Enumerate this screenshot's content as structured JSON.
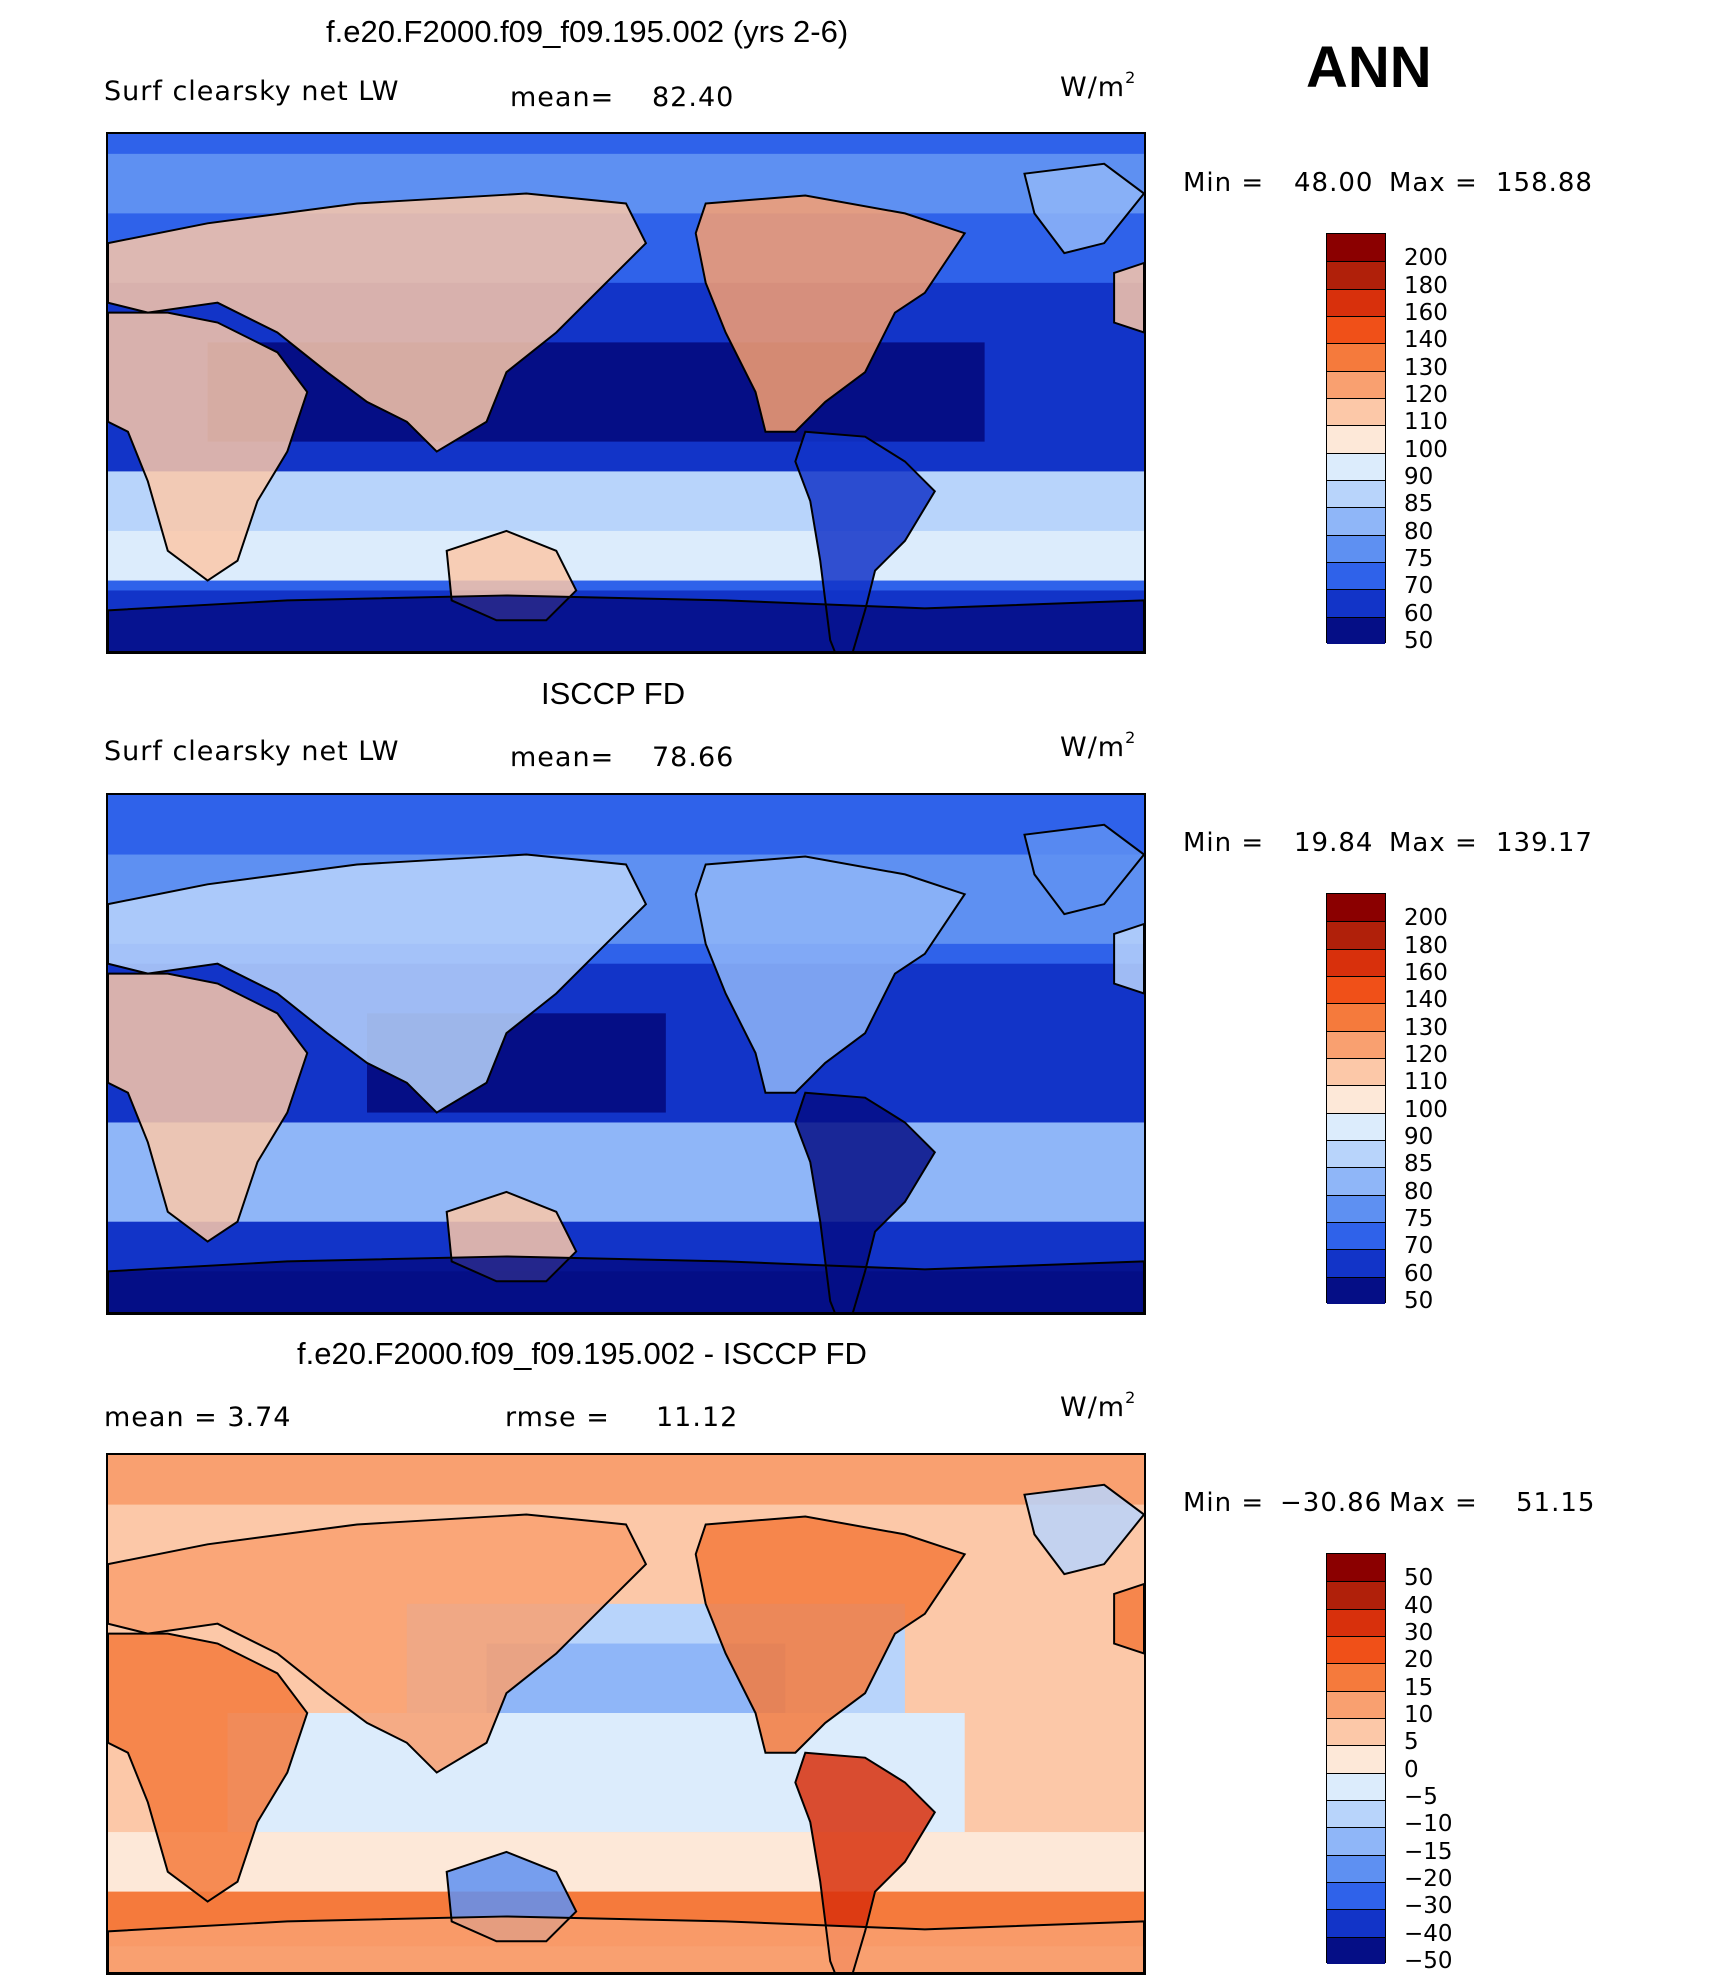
{
  "season": "ANN",
  "panels": [
    {
      "title": "f.e20.F2000.f09_f09.195.002 (yrs 2-6)",
      "left_text": "Surf  clearsky  net  LW",
      "mid_label": "mean=",
      "mid_value": "82.40",
      "units_base": "W/m",
      "units_sup": "2",
      "min_label": "Min  =",
      "min_value": "48.00",
      "max_label": "Max  =",
      "max_value": "158.88",
      "levels": [
        "200",
        "180",
        "160",
        "140",
        "130",
        "120",
        "110",
        "100",
        "90",
        "85",
        "80",
        "75",
        "70",
        "60",
        "50"
      ],
      "field_kind": "model"
    },
    {
      "title": "ISCCP FD",
      "left_text": "Surf  clearsky  net  LW",
      "mid_label": "mean=",
      "mid_value": "78.66",
      "units_base": "W/m",
      "units_sup": "2",
      "min_label": "Min  =",
      "min_value": "19.84",
      "max_label": "Max  =",
      "max_value": "139.17",
      "levels": [
        "200",
        "180",
        "160",
        "140",
        "130",
        "120",
        "110",
        "100",
        "90",
        "85",
        "80",
        "75",
        "70",
        "60",
        "50"
      ],
      "field_kind": "obs"
    },
    {
      "title": "f.e20.F2000.f09_f09.195.002 - ISCCP FD",
      "left_text": "mean  =      3.74",
      "mid_label": "rmse  =",
      "mid_value": "11.12",
      "units_base": "W/m",
      "units_sup": "2",
      "min_label": "Min  =",
      "min_value": "−30.86",
      "max_label": "Max  =",
      "max_value": "51.15",
      "levels": [
        "50",
        "40",
        "30",
        "20",
        "15",
        "10",
        "5",
        "0",
        "−5",
        "−10",
        "−15",
        "−20",
        "−30",
        "−40",
        "−50"
      ],
      "field_kind": "diff"
    }
  ],
  "colorbar_colors": [
    "#8b0000",
    "#b0200a",
    "#d8300c",
    "#f05018",
    "#f57a3c",
    "#f9a070",
    "#fcc8a8",
    "#fde8d8",
    "#dcecfc",
    "#b8d4fb",
    "#8fb6f8",
    "#5e90f2",
    "#2f62ea",
    "#1234c8",
    "#050e86"
  ]
}
